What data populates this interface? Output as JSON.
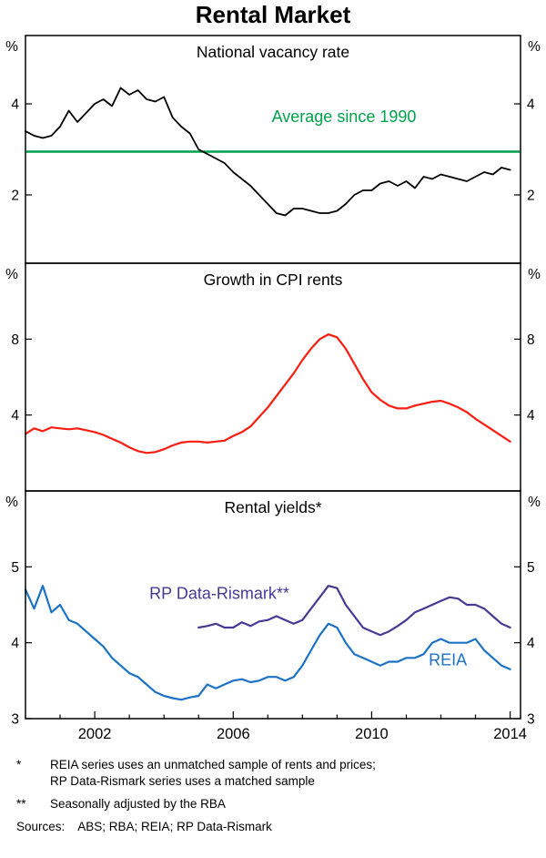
{
  "title": "Rental Market",
  "chart_data": [
    {
      "type": "line",
      "title": "National vacancy rate",
      "unit": "%",
      "ylim": [
        0.5,
        5.5
      ],
      "yticks": [
        2,
        4
      ],
      "series": [
        {
          "name": "average-since-1990",
          "color": "#00a14b",
          "width": 2.6,
          "hline": 2.95
        },
        {
          "name": "vacancy-rate",
          "color": "#000000",
          "width": 1.8,
          "x_start": 2000,
          "x_step": 0.25,
          "values": [
            3.4,
            3.3,
            3.25,
            3.3,
            3.5,
            3.85,
            3.6,
            3.8,
            4.0,
            4.1,
            3.95,
            4.35,
            4.2,
            4.3,
            4.1,
            4.05,
            4.15,
            3.7,
            3.5,
            3.35,
            3.0,
            2.9,
            2.8,
            2.7,
            2.5,
            2.35,
            2.2,
            2.0,
            1.8,
            1.6,
            1.55,
            1.7,
            1.7,
            1.65,
            1.6,
            1.6,
            1.65,
            1.8,
            2.0,
            2.1,
            2.1,
            2.25,
            2.3,
            2.2,
            2.3,
            2.15,
            2.4,
            2.35,
            2.45,
            2.4,
            2.35,
            2.3,
            2.4,
            2.5,
            2.45,
            2.6,
            2.55
          ]
        }
      ],
      "annotations": [
        {
          "text": "Average since 1990",
          "x": 2009.2,
          "y": 3.6,
          "color": "#00a14b"
        }
      ]
    },
    {
      "type": "line",
      "title": "Growth in CPI rents",
      "unit": "%",
      "ylim": [
        0,
        12
      ],
      "yticks": [
        4,
        8
      ],
      "series": [
        {
          "name": "cpi-rents-growth",
          "color": "#fb1d10",
          "width": 2.2,
          "x_start": 2000,
          "x_step": 0.25,
          "values": [
            3.0,
            3.3,
            3.15,
            3.35,
            3.3,
            3.25,
            3.3,
            3.2,
            3.1,
            2.95,
            2.75,
            2.55,
            2.3,
            2.1,
            2.0,
            2.05,
            2.2,
            2.4,
            2.55,
            2.6,
            2.6,
            2.55,
            2.6,
            2.65,
            2.9,
            3.1,
            3.4,
            3.9,
            4.4,
            5.0,
            5.6,
            6.2,
            6.9,
            7.5,
            8.0,
            8.25,
            8.1,
            7.5,
            6.7,
            5.9,
            5.2,
            4.8,
            4.5,
            4.35,
            4.35,
            4.5,
            4.6,
            4.7,
            4.75,
            4.6,
            4.4,
            4.15,
            3.8,
            3.5,
            3.2,
            2.9,
            2.6
          ]
        }
      ],
      "annotations": []
    },
    {
      "type": "line",
      "title": "Rental yields*",
      "unit": "%",
      "ylim": [
        3,
        6
      ],
      "yticks": [
        3,
        4,
        5
      ],
      "series": [
        {
          "name": "rp-data-rismark",
          "color": "#473896",
          "width": 2.2,
          "x_start": 2005,
          "x_step": 0.25,
          "values": [
            4.2,
            4.22,
            4.25,
            4.2,
            4.2,
            4.27,
            4.22,
            4.28,
            4.3,
            4.35,
            4.3,
            4.25,
            4.3,
            4.45,
            4.6,
            4.75,
            4.72,
            4.5,
            4.35,
            4.2,
            4.15,
            4.1,
            4.15,
            4.22,
            4.3,
            4.4,
            4.45,
            4.5,
            4.55,
            4.6,
            4.58,
            4.5,
            4.5,
            4.45,
            4.35,
            4.25,
            4.2
          ]
        },
        {
          "name": "reia",
          "color": "#1c72c4",
          "width": 2.2,
          "x_start": 2000,
          "x_step": 0.25,
          "values": [
            4.7,
            4.45,
            4.75,
            4.4,
            4.5,
            4.3,
            4.25,
            4.15,
            4.05,
            3.95,
            3.8,
            3.7,
            3.6,
            3.55,
            3.45,
            3.35,
            3.3,
            3.27,
            3.25,
            3.28,
            3.3,
            3.45,
            3.4,
            3.45,
            3.5,
            3.52,
            3.48,
            3.5,
            3.55,
            3.55,
            3.5,
            3.55,
            3.7,
            3.9,
            4.1,
            4.25,
            4.2,
            4.0,
            3.85,
            3.8,
            3.75,
            3.7,
            3.75,
            3.75,
            3.8,
            3.8,
            3.85,
            4.0,
            4.05,
            4.0,
            4.0,
            4.0,
            4.05,
            3.9,
            3.8,
            3.7,
            3.65
          ]
        }
      ],
      "annotations": [
        {
          "text": "RP Data-Rismark**",
          "x": 2005.6,
          "y": 4.58,
          "color": "#473896"
        },
        {
          "text": "REIA",
          "x": 2012.2,
          "y": 3.7,
          "color": "#1c72c4"
        }
      ]
    }
  ],
  "x_axis": {
    "xlim": [
      2000,
      2014.3
    ],
    "tick_years": [
      2002,
      2006,
      2010,
      2014
    ]
  },
  "footnotes": [
    {
      "marker": "*",
      "text": "REIA series uses an unmatched sample of rents and prices;\nRP Data-Rismark series uses a matched sample"
    },
    {
      "marker": "**",
      "text": "Seasonally adjusted by the RBA"
    }
  ],
  "sources_label": "Sources:",
  "sources": "ABS; RBA; REIA; RP Data-Rismark"
}
